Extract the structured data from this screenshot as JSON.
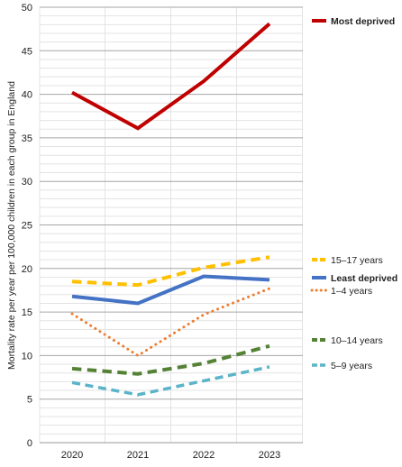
{
  "chart_data": {
    "type": "line",
    "title": "",
    "xlabel": "",
    "ylabel": "Mortality rate per year per 100,000 children in each group in England",
    "x": [
      "2020",
      "2021",
      "2022",
      "2023"
    ],
    "ylim": [
      0,
      50
    ],
    "y_major_ticks": [
      0,
      5,
      10,
      15,
      20,
      25,
      30,
      35,
      40,
      45,
      50
    ],
    "y_minor_step": 1,
    "grid": true,
    "legend_placement": "right",
    "series": [
      {
        "name": "Most deprived",
        "values": [
          40.2,
          36.1,
          41.5,
          48.1
        ],
        "color": "#c00000",
        "style": "solid",
        "width": 4,
        "bold": true
      },
      {
        "name": "15–17 years",
        "values": [
          18.5,
          18.1,
          20.1,
          21.3
        ],
        "color": "#ffc000",
        "style": "dashed",
        "width": 4,
        "bold": false
      },
      {
        "name": "Least deprived",
        "values": [
          16.8,
          16.0,
          19.1,
          18.7
        ],
        "color": "#4472c4",
        "style": "solid",
        "width": 4,
        "bold": true
      },
      {
        "name": "1–4 years",
        "values": [
          14.8,
          10.0,
          14.7,
          17.7
        ],
        "color": "#ed7d31",
        "style": "dotted",
        "width": 3,
        "bold": false
      },
      {
        "name": "10–14 years",
        "values": [
          8.5,
          7.9,
          9.1,
          11.1
        ],
        "color": "#548235",
        "style": "dashed",
        "width": 4,
        "bold": false
      },
      {
        "name": "5–9 years",
        "values": [
          6.9,
          5.5,
          7.1,
          8.7
        ],
        "color": "#5bb4c8",
        "style": "dashed",
        "width": 3.5,
        "bold": false
      }
    ]
  }
}
